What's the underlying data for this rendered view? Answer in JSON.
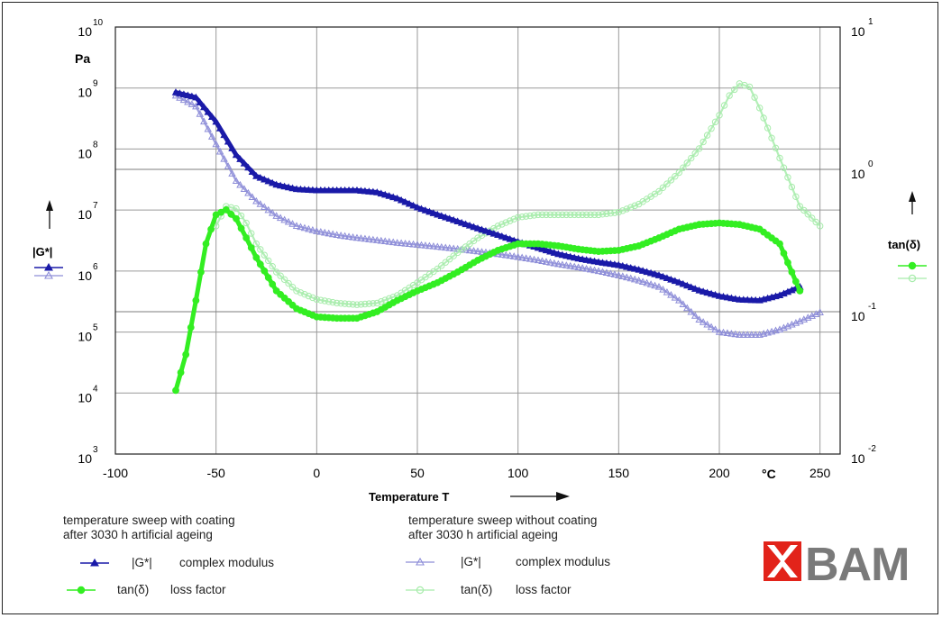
{
  "chart_data": {
    "type": "line",
    "xlabel": "Temperature T",
    "x_unit": "°C",
    "xlim": [
      -100,
      260
    ],
    "x_ticks": [
      -100,
      -50,
      0,
      50,
      100,
      150,
      200,
      250
    ],
    "left_axis": {
      "label": "|G*|",
      "unit": "Pa",
      "scale": "log",
      "lim": [
        1000,
        10000000000
      ],
      "tick_labels": [
        {
          "base": "10",
          "exp": "3"
        },
        {
          "base": "10",
          "exp": "4"
        },
        {
          "base": "10",
          "exp": "5"
        },
        {
          "base": "10",
          "exp": "6"
        },
        {
          "base": "10",
          "exp": "7"
        },
        {
          "base": "10",
          "exp": "8"
        },
        {
          "base": "10",
          "exp": "9"
        },
        {
          "base": "10",
          "exp": "10"
        }
      ]
    },
    "right_axis": {
      "label": "tan(δ)",
      "scale": "log",
      "lim": [
        0.01,
        10
      ],
      "tick_labels": [
        {
          "base": "10",
          "exp": "-2"
        },
        {
          "base": "10",
          "exp": "-1"
        },
        {
          "base": "10",
          "exp": "0"
        },
        {
          "base": "10",
          "exp": "1"
        }
      ]
    },
    "grid": true,
    "series": [
      {
        "name": "|G*| complex modulus (with coating)",
        "axis": "left",
        "color": "#1a1aa8",
        "marker": "triangle",
        "style": "solid",
        "x": [
          -70,
          -60,
          -50,
          -40,
          -30,
          -20,
          -10,
          0,
          10,
          20,
          30,
          40,
          50,
          60,
          70,
          80,
          90,
          100,
          110,
          120,
          130,
          140,
          150,
          160,
          170,
          180,
          190,
          200,
          210,
          220,
          230,
          240
        ],
        "y": [
          850000000,
          700000000,
          280000000,
          80000000,
          36000000,
          26000000,
          22000000,
          21000000,
          21000000,
          21000000,
          19500000,
          15500000,
          11000000,
          8400000,
          6500000,
          5000000,
          3900000,
          3000000,
          2400000,
          1900000,
          1600000,
          1400000,
          1250000,
          1050000,
          850000,
          650000,
          480000,
          390000,
          340000,
          330000,
          400000,
          550000
        ]
      },
      {
        "name": "|G*| complex modulus (without coating)",
        "axis": "left",
        "color": "#8d8dd8",
        "marker": "triangle-open",
        "style": "open",
        "x": [
          -70,
          -60,
          -50,
          -40,
          -30,
          -20,
          -10,
          0,
          10,
          20,
          30,
          40,
          50,
          60,
          70,
          80,
          90,
          100,
          110,
          120,
          130,
          140,
          150,
          160,
          170,
          180,
          190,
          200,
          210,
          220,
          230,
          240,
          250
        ],
        "y": [
          750000000,
          500000000,
          120000000,
          30000000,
          14000000,
          8000000,
          5500000,
          4500000,
          3900000,
          3500000,
          3200000,
          2900000,
          2700000,
          2500000,
          2300000,
          2100000,
          1900000,
          1700000,
          1500000,
          1300000,
          1150000,
          1000000,
          850000,
          700000,
          550000,
          330000,
          160000,
          100000,
          90000,
          90000,
          110000,
          150000,
          210000
        ]
      },
      {
        "name": "tan(δ) loss factor (with coating)",
        "axis": "right",
        "color": "#33ee22",
        "marker": "circle",
        "style": "solid",
        "x": [
          -70,
          -65,
          -60,
          -55,
          -50,
          -45,
          -40,
          -35,
          -30,
          -20,
          -10,
          0,
          10,
          20,
          30,
          40,
          50,
          60,
          70,
          80,
          90,
          100,
          110,
          120,
          130,
          140,
          150,
          160,
          170,
          180,
          190,
          200,
          210,
          220,
          230,
          240
        ],
        "y": [
          0.028,
          0.05,
          0.12,
          0.3,
          0.48,
          0.52,
          0.45,
          0.33,
          0.24,
          0.14,
          0.105,
          0.092,
          0.09,
          0.09,
          0.1,
          0.12,
          0.14,
          0.16,
          0.19,
          0.23,
          0.27,
          0.3,
          0.3,
          0.29,
          0.275,
          0.265,
          0.27,
          0.29,
          0.33,
          0.38,
          0.41,
          0.42,
          0.41,
          0.38,
          0.3,
          0.14
        ]
      },
      {
        "name": "tan(δ) loss factor (without coating)",
        "axis": "right",
        "color": "#a7ecab",
        "marker": "circle-open",
        "style": "open",
        "x": [
          -50,
          -45,
          -40,
          -35,
          -30,
          -20,
          -10,
          0,
          10,
          20,
          30,
          40,
          50,
          60,
          70,
          80,
          90,
          100,
          110,
          120,
          130,
          140,
          150,
          160,
          170,
          180,
          190,
          200,
          205,
          210,
          215,
          220,
          230,
          240,
          250
        ],
        "y": [
          0.4,
          0.55,
          0.53,
          0.42,
          0.3,
          0.19,
          0.14,
          0.122,
          0.115,
          0.112,
          0.115,
          0.13,
          0.16,
          0.2,
          0.26,
          0.33,
          0.4,
          0.46,
          0.48,
          0.48,
          0.48,
          0.48,
          0.5,
          0.57,
          0.7,
          0.95,
          1.4,
          2.4,
          3.3,
          4,
          3.8,
          2.7,
          1.2,
          0.55,
          0.4
        ]
      }
    ],
    "legend": {
      "group_with": [
        "temperature sweep with coating",
        "after 3030 h artificial ageing"
      ],
      "group_without": [
        "temperature sweep without coating",
        "after 3030 h artificial ageing"
      ],
      "entries_with": [
        {
          "symbol": "|G*|",
          "desc": "complex modulus"
        },
        {
          "symbol": "tan(δ)",
          "desc": "loss factor"
        }
      ],
      "entries_without": [
        {
          "symbol": "|G*|",
          "desc": "complex modulus"
        },
        {
          "symbol": "tan(δ)",
          "desc": "loss factor"
        }
      ]
    }
  },
  "logo": {
    "text": "BAM",
    "color": "#7a7a7a",
    "accent": "#e2231a"
  }
}
